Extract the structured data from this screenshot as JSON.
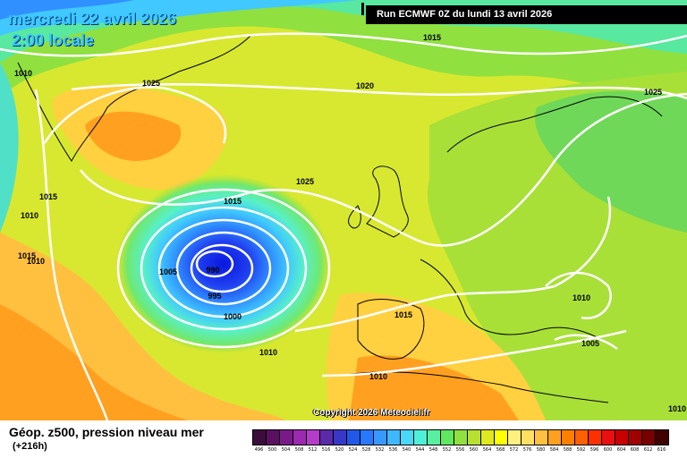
{
  "header": {
    "date": "mercredi 22 avril 2026",
    "time": "2:00 locale",
    "run": "Run ECMWF 0Z du lundi 13 avril 2026"
  },
  "copyright": "Copyright 2026 Meteociel.fr",
  "legend": {
    "title": "Géop. z500, pression niveau mer",
    "subtitle": "(+216h)",
    "ticks": [
      "496",
      "500",
      "504",
      "508",
      "512",
      "516",
      "520",
      "524",
      "528",
      "532",
      "536",
      "540",
      "544",
      "548",
      "552",
      "556",
      "560",
      "564",
      "568",
      "572",
      "576",
      "580",
      "584",
      "588",
      "592",
      "596",
      "600",
      "604",
      "608",
      "612",
      "616"
    ],
    "colors": [
      "#3a0d3a",
      "#5a1060",
      "#7a1a8a",
      "#9a2ab0",
      "#b43cc8",
      "#5a2aa8",
      "#3838c8",
      "#2058e8",
      "#2878ff",
      "#3898ff",
      "#40b8ff",
      "#48d8f8",
      "#50f0d8",
      "#58f0a0",
      "#60e860",
      "#90e040",
      "#b8e030",
      "#e0e820",
      "#ffff00",
      "#fff080",
      "#ffe060",
      "#ffc040",
      "#ffa020",
      "#ff8000",
      "#ff6000",
      "#ff3000",
      "#e81010",
      "#c80000",
      "#a00000",
      "#780000",
      "#400000"
    ]
  },
  "isobars": {
    "labels": [
      "1015",
      "1010",
      "1025",
      "1020",
      "1025",
      "1015",
      "1010",
      "1025",
      "1015",
      "1010",
      "1015",
      "990",
      "995",
      "1005",
      "1000",
      "1010",
      "1015",
      "1010",
      "1010",
      "1005",
      "1010"
    ]
  },
  "colors": {
    "isobar": "#ffffff",
    "coast": "#000000",
    "title": "#38c8ff"
  }
}
